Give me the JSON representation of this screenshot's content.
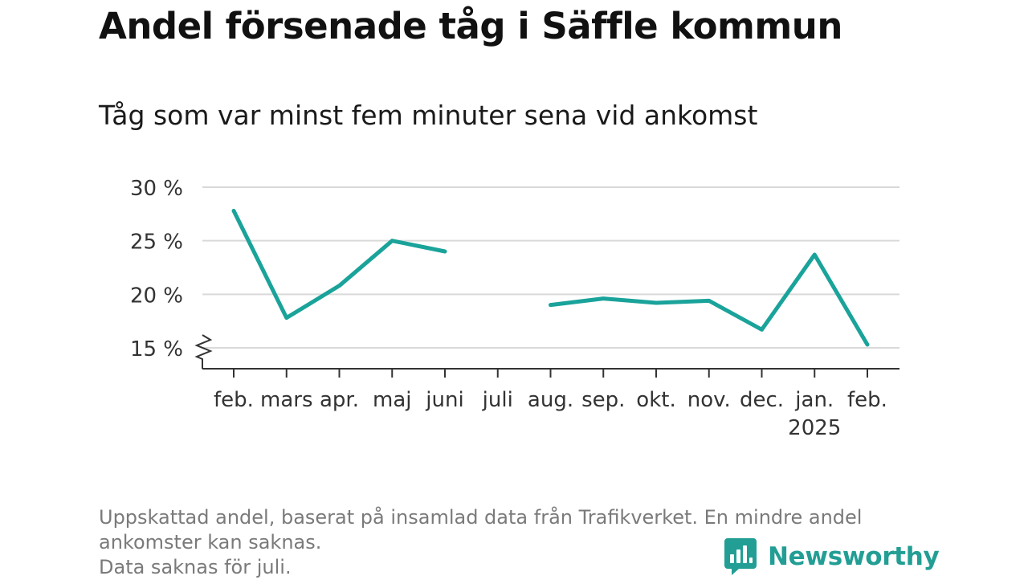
{
  "title": "Andel försenade tåg i Säffle kommun",
  "subtitle": "Tåg som var minst fem minuter sena vid ankomst",
  "notes": [
    "Uppskattad andel, baserat på insamlad data från Trafikverket. En mindre andel",
    "ankomster kan saknas.",
    "Data saknas för juli."
  ],
  "brand": {
    "name": "Newsworthy",
    "color": "#229e94"
  },
  "colors": {
    "line": "#1aa39a",
    "grid": "#d9d9d9",
    "axis": "#333333"
  },
  "chart_data": {
    "type": "line",
    "title": "Andel försenade tåg i Säffle kommun",
    "subtitle": "Tåg som var minst fem minuter sena vid ankomst",
    "categories": [
      "feb.",
      "mars",
      "apr.",
      "maj",
      "juni",
      "juli",
      "aug.",
      "sep.",
      "okt.",
      "nov.",
      "dec.",
      "jan.",
      "feb."
    ],
    "year_labels": [
      "",
      "",
      "",
      "",
      "",
      "",
      "",
      "",
      "",
      "",
      "",
      "2025",
      ""
    ],
    "series": [
      {
        "values": [
          27.8,
          17.8,
          20.8,
          25.0,
          24.0,
          null,
          19.0,
          19.6,
          19.2,
          19.4,
          16.7,
          23.7,
          15.3
        ]
      }
    ],
    "ylim": [
      13.7,
      30
    ],
    "yticks": [
      15,
      20,
      25,
      30
    ],
    "ytick_labels": [
      "15 %",
      "20 %",
      "25 %",
      "30 %"
    ],
    "y_axis_break": true,
    "grid": true,
    "xlabel": "",
    "ylabel": ""
  }
}
